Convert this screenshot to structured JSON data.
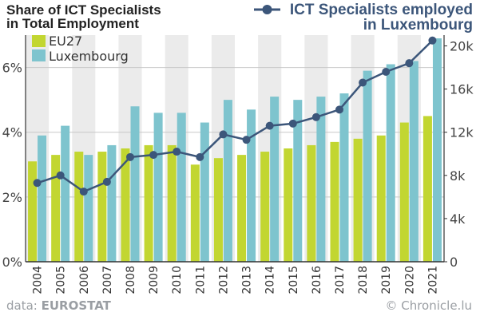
{
  "chart_data": {
    "type": "bar+line",
    "left_title_line1": "Share of ICT Specialists",
    "left_title_line2": "in Total Employment",
    "right_title_line1": "ICT Specialists employed",
    "right_title_line2": "in Luxembourg",
    "categories": [
      "2004",
      "2005",
      "2006",
      "2007",
      "2008",
      "2009",
      "2010",
      "2011",
      "2012",
      "2013",
      "2014",
      "2015",
      "2016",
      "2017",
      "2018",
      "2019",
      "2020",
      "2021"
    ],
    "bar_series": [
      {
        "name": "EU27",
        "color": "#c2d631",
        "values": [
          3.1,
          3.3,
          3.4,
          3.4,
          3.5,
          3.6,
          3.6,
          3.0,
          3.2,
          3.3,
          3.4,
          3.5,
          3.6,
          3.7,
          3.8,
          3.9,
          4.3,
          4.5
        ]
      },
      {
        "name": "Luxembourg",
        "color": "#7ec4ce",
        "values": [
          3.9,
          4.2,
          3.3,
          3.6,
          4.8,
          4.6,
          4.6,
          4.3,
          5.0,
          4.7,
          5.1,
          5.0,
          5.1,
          5.2,
          5.9,
          6.1,
          6.2,
          6.9
        ]
      }
    ],
    "line_series": {
      "name": "ICT Specialists employed in Luxembourg",
      "color": "#3c567a",
      "values": [
        7300,
        8000,
        6500,
        7400,
        9700,
        9900,
        10200,
        9700,
        11800,
        11300,
        12600,
        12800,
        13400,
        14100,
        16600,
        17600,
        18400,
        20500
      ]
    },
    "left_axis": {
      "ticks": [
        "0%",
        "2%",
        "4%",
        "6%"
      ],
      "ylim": [
        0,
        7
      ]
    },
    "right_axis": {
      "ticks": [
        "0",
        "4k",
        "8k",
        "12k",
        "16k",
        "20k"
      ],
      "ylim": [
        0,
        21000
      ]
    },
    "grid": true,
    "legend_position": "top-left"
  },
  "footer": {
    "source_prefix": "data: ",
    "source_name": "EUROSTAT",
    "credit": "© Chronicle.lu"
  }
}
